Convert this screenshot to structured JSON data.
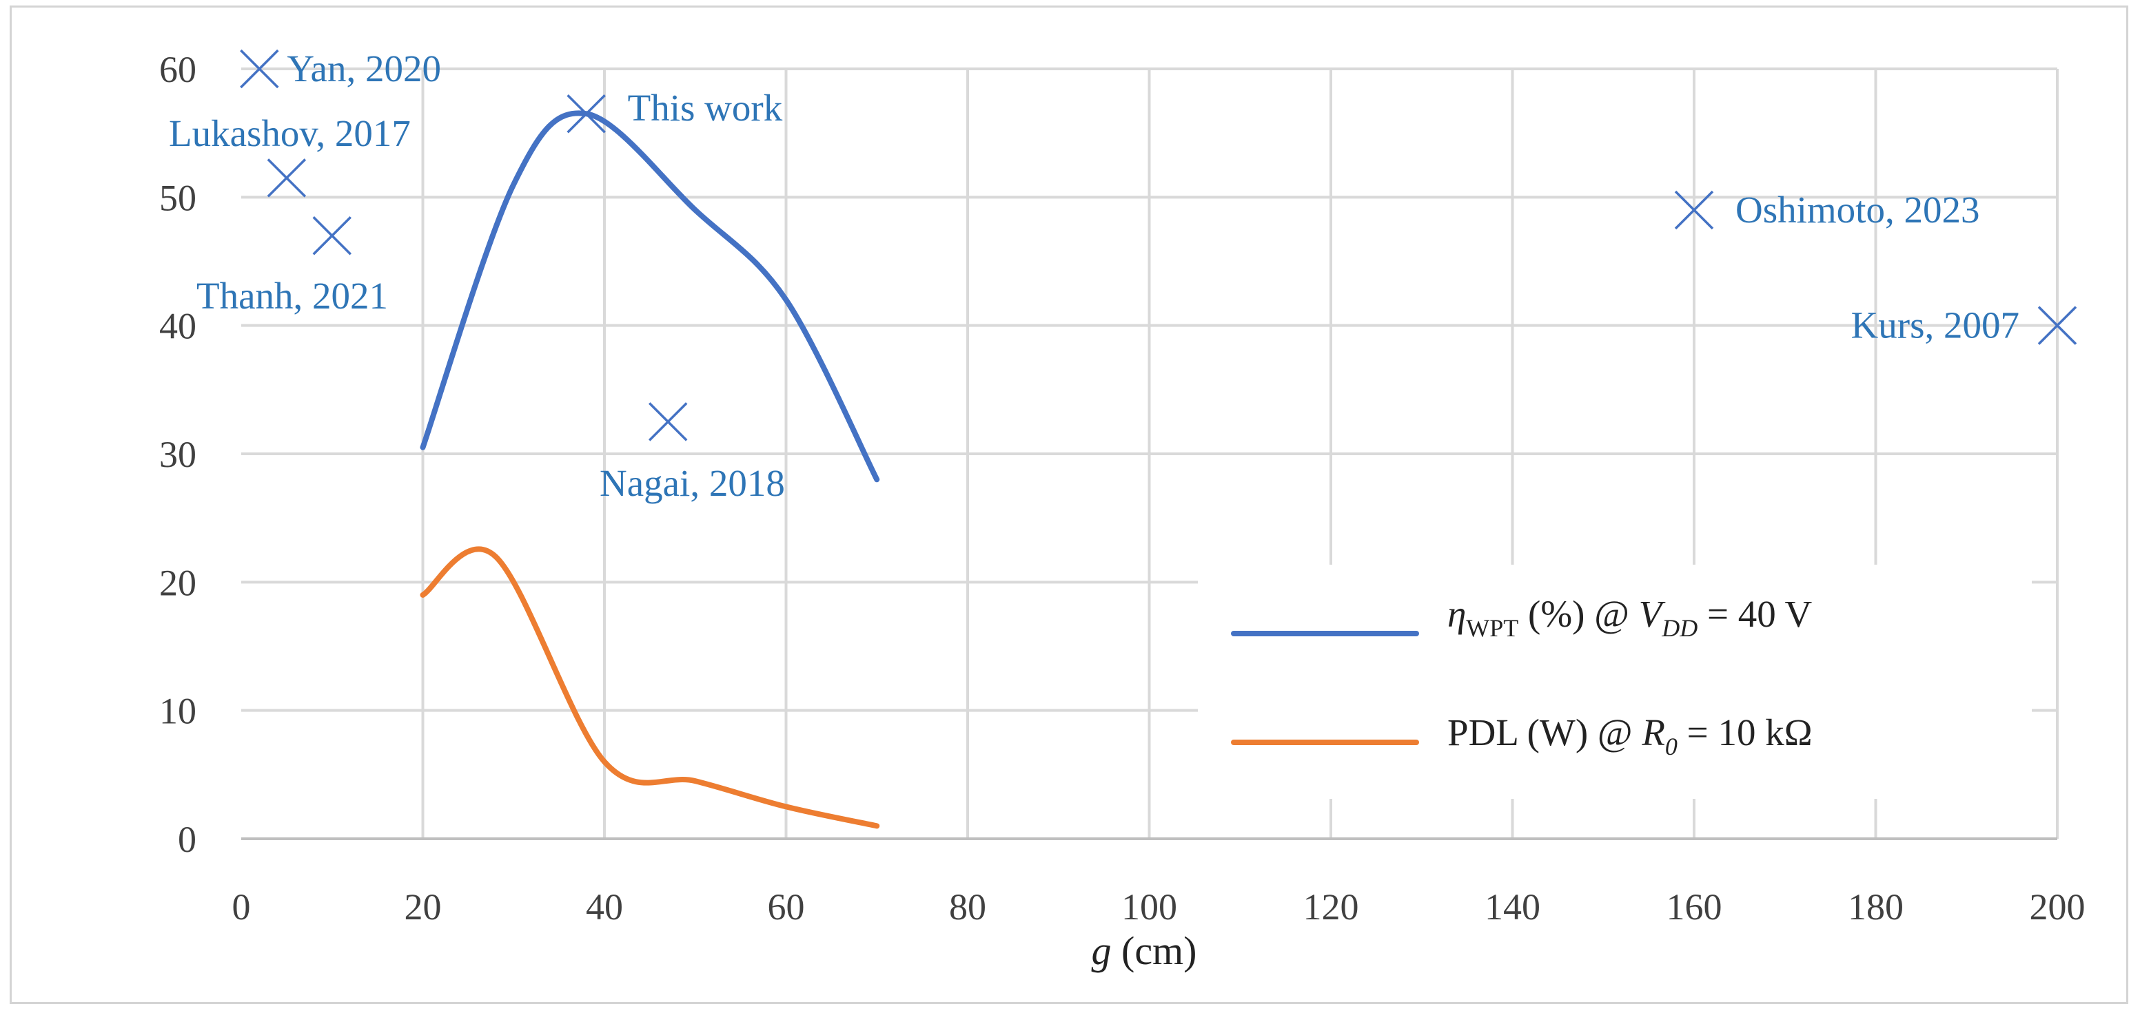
{
  "chart_data": {
    "type": "line",
    "title": "",
    "xlabel": "(cm)",
    "xlabel_var": "g",
    "ylabel": "",
    "xlim": [
      0,
      200
    ],
    "ylim": [
      0,
      60
    ],
    "x_ticks": [
      "0",
      "20",
      "40",
      "60",
      "80",
      "100",
      "120",
      "140",
      "160",
      "180",
      "200"
    ],
    "y_ticks": [
      "0",
      "10",
      "20",
      "30",
      "40",
      "50",
      "60"
    ],
    "grid": true,
    "series": [
      {
        "name": "ηWPT (%) @ VDD = 40 V",
        "color": "#4472C4",
        "x": [
          20,
          30,
          38,
          50,
          60,
          70
        ],
        "values": [
          30.5,
          51,
          56.5,
          49,
          42,
          28
        ]
      },
      {
        "name": "PDL (W) @ R0 = 10 kΩ",
        "color": "#ED7D31",
        "x": [
          20,
          28,
          40,
          50,
          60,
          70
        ],
        "values": [
          19,
          22,
          6,
          4.5,
          2.5,
          1
        ]
      }
    ],
    "points": [
      {
        "x": 2,
        "y": 60,
        "label": "Yan, 2020"
      },
      {
        "x": 5,
        "y": 51.5,
        "label": "Lukashov, 2017"
      },
      {
        "x": 10,
        "y": 47,
        "label": "Thanh, 2021"
      },
      {
        "x": 38,
        "y": 56.5,
        "label": "This work"
      },
      {
        "x": 47,
        "y": 32.5,
        "label": "Nagai, 2018"
      },
      {
        "x": 160,
        "y": 49,
        "label": "Oshimoto, 2023"
      },
      {
        "x": 200,
        "y": 40,
        "label": "Kurs, 2007"
      }
    ],
    "legend": {
      "placement": "bottom-right",
      "entries": [
        {
          "symbol": "η",
          "sub": "WPT",
          "text": " (%) @ ",
          "var": "V",
          "var_sub": "DD",
          "tail": " = 40 V"
        },
        {
          "symbol": "PDL (W) @ ",
          "var": "R",
          "var_sub": "0",
          "tail": " = 10 kΩ"
        }
      ]
    },
    "colors": {
      "marker": "#4472C4",
      "label": "#2E75B6",
      "grid": "#d9d9d9",
      "axis": "#bfbfbf"
    }
  }
}
